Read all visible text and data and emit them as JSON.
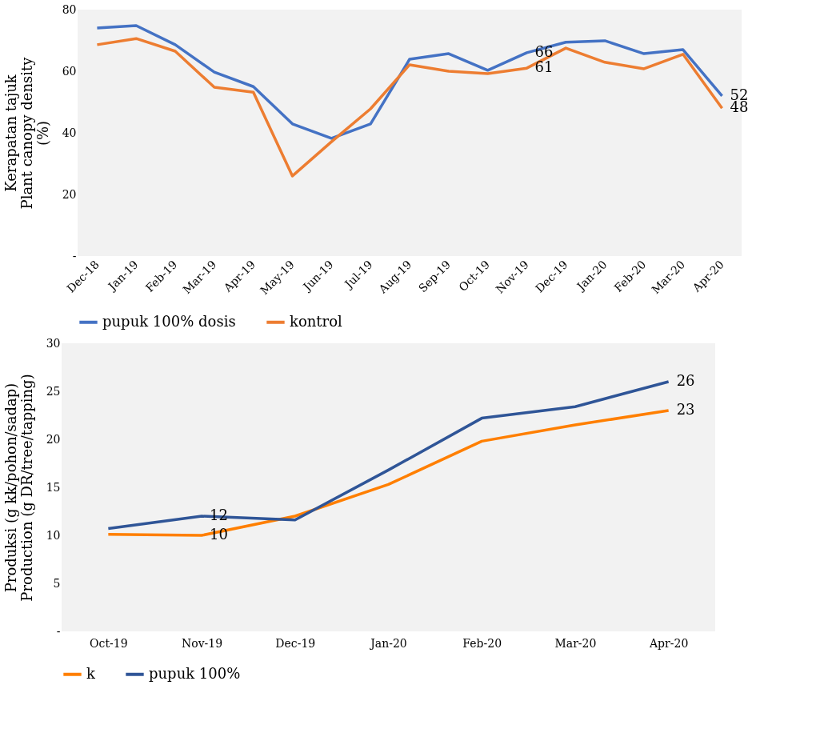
{
  "chart_data": [
    {
      "type": "line",
      "ylabel": "Kerapatan tajuk\nPlant canopy density\n(%)",
      "categories": [
        "Dec-18",
        "Jan-19",
        "Feb-19",
        "Mar-19",
        "Apr-19",
        "May-19",
        "Jun-19",
        "Jul-19",
        "Aug-19",
        "Sep-19",
        "Oct-19",
        "Nov-19",
        "Dec-19",
        "Jan-20",
        "Feb-20",
        "Mar-20",
        "Apr-20"
      ],
      "series": [
        {
          "name": "pupuk 100% dosis",
          "color": "#4472c4",
          "values": [
            74,
            74.8,
            68.6,
            59.7,
            55,
            42.9,
            38.2,
            42.9,
            63.9,
            65.7,
            60.3,
            66,
            69.4,
            69.9,
            65.7,
            67,
            52
          ],
          "value_labels": [
            null,
            null,
            null,
            null,
            null,
            null,
            null,
            null,
            null,
            null,
            null,
            "66",
            null,
            null,
            null,
            null,
            "52"
          ]
        },
        {
          "name": "kontrol",
          "color": "#ed7d31",
          "values": [
            68.6,
            70.6,
            66.5,
            54.8,
            53.2,
            26,
            37.1,
            47.8,
            62.1,
            60,
            59.2,
            61,
            67.5,
            62.9,
            60.8,
            65.5,
            48
          ],
          "value_labels": [
            null,
            null,
            null,
            null,
            null,
            null,
            null,
            null,
            null,
            null,
            null,
            "61",
            null,
            null,
            null,
            null,
            "48"
          ]
        }
      ],
      "ylim": [
        0,
        80
      ],
      "yticks": [
        {
          "value": 0,
          "label": "-"
        },
        20,
        40,
        60,
        80
      ],
      "grid": false,
      "legend": "bottom",
      "marker": "none",
      "line_style": "solid"
    },
    {
      "type": "line",
      "ylabel": "Produksi (g kk/pohon/sadap)\nProduction (g DR/tree/tapping)",
      "categories": [
        "Oct-19",
        "Nov-19",
        "Dec-19",
        "Jan-20",
        "Feb-20",
        "Mar-20",
        "Apr-20"
      ],
      "series": [
        {
          "name": "k",
          "color": "#ff7f00",
          "values": [
            10.1,
            10,
            12,
            15.3,
            19.8,
            21.5,
            23
          ],
          "value_labels": [
            null,
            "10",
            null,
            null,
            null,
            null,
            "23"
          ]
        },
        {
          "name": "pupuk 100%",
          "color": "#2f5597",
          "values": [
            10.7,
            12,
            11.6,
            16.8,
            22.2,
            23.4,
            26
          ],
          "value_labels": [
            null,
            "12",
            null,
            null,
            null,
            null,
            "26"
          ]
        }
      ],
      "ylim": [
        0,
        30
      ],
      "yticks": [
        {
          "value": 0,
          "label": "-"
        },
        5,
        10,
        15,
        20,
        25,
        30
      ],
      "grid": false,
      "legend": "bottom",
      "marker": "none",
      "line_style": "solid"
    }
  ]
}
